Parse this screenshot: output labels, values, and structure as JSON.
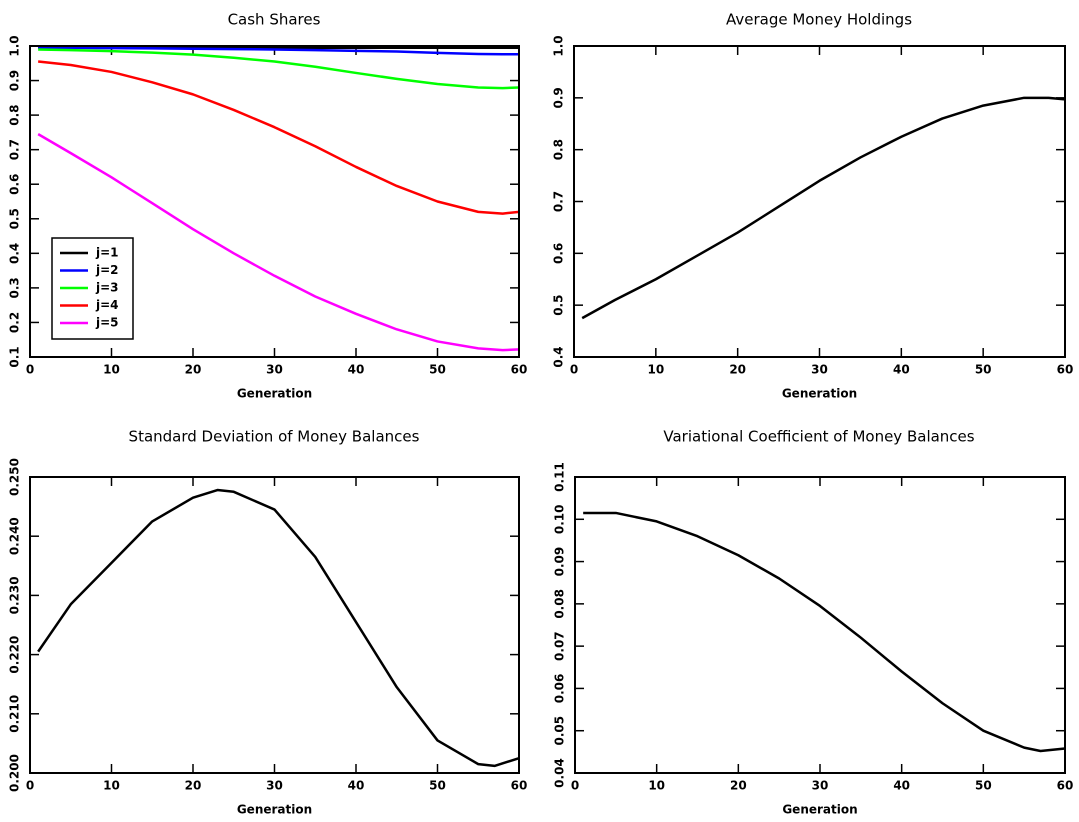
{
  "chart_data": [
    {
      "type": "line",
      "title": "Cash Shares",
      "xlabel": "Generation",
      "xlim": [
        0,
        60
      ],
      "xticks": [
        0,
        10,
        20,
        30,
        40,
        50,
        60
      ],
      "ylim": [
        0.1,
        1.0
      ],
      "yticks": [
        0.1,
        0.2,
        0.3,
        0.4,
        0.5,
        0.6,
        0.7,
        0.8,
        0.9,
        {
          "value": 1.0,
          "label": "1.0"
        }
      ],
      "legend": "lower left",
      "x": [
        1,
        5,
        10,
        15,
        20,
        25,
        30,
        35,
        40,
        45,
        50,
        55,
        58,
        60
      ],
      "series": [
        {
          "name": "j=1",
          "color": "#000000",
          "values": [
            0.995,
            0.995,
            0.995,
            0.995,
            0.995,
            0.995,
            0.995,
            0.995,
            0.995,
            0.995,
            0.995,
            0.995,
            0.995,
            0.995
          ]
        },
        {
          "name": "j=2",
          "color": "#0000ff",
          "values": [
            0.995,
            0.995,
            0.994,
            0.993,
            0.992,
            0.991,
            0.99,
            0.988,
            0.986,
            0.984,
            0.98,
            0.977,
            0.976,
            0.976
          ]
        },
        {
          "name": "j=3",
          "color": "#00ff00",
          "values": [
            0.99,
            0.988,
            0.985,
            0.981,
            0.975,
            0.966,
            0.955,
            0.94,
            0.922,
            0.905,
            0.89,
            0.88,
            0.878,
            0.88
          ]
        },
        {
          "name": "j=4",
          "color": "#ff0000",
          "values": [
            0.955,
            0.945,
            0.925,
            0.895,
            0.86,
            0.815,
            0.765,
            0.71,
            0.65,
            0.595,
            0.55,
            0.52,
            0.515,
            0.52
          ]
        },
        {
          "name": "j=5",
          "color": "#ff00ff",
          "values": [
            0.745,
            0.69,
            0.62,
            0.545,
            0.47,
            0.4,
            0.335,
            0.275,
            0.225,
            0.18,
            0.145,
            0.125,
            0.12,
            0.122
          ]
        }
      ]
    },
    {
      "type": "line",
      "title": "Average Money Holdings",
      "xlabel": "Generation",
      "xlim": [
        0,
        60
      ],
      "xticks": [
        0,
        10,
        20,
        30,
        40,
        50,
        60
      ],
      "ylim": [
        0.4,
        1.0
      ],
      "yticks": [
        0.4,
        0.5,
        0.6,
        0.7,
        0.8,
        0.9,
        {
          "value": 1.0,
          "label": "1.0"
        }
      ],
      "x": [
        1,
        5,
        10,
        15,
        20,
        25,
        30,
        35,
        40,
        45,
        50,
        55,
        58,
        60
      ],
      "series": [
        {
          "color": "#000000",
          "values": [
            0.475,
            0.51,
            0.55,
            0.595,
            0.64,
            0.69,
            0.74,
            0.785,
            0.825,
            0.86,
            0.885,
            0.9,
            0.9,
            0.897
          ]
        }
      ]
    },
    {
      "type": "line",
      "title": "Standard Deviation of Money Balances",
      "xlabel": "Generation",
      "xlim": [
        0,
        60
      ],
      "xticks": [
        0,
        10,
        20,
        30,
        40,
        50,
        60
      ],
      "ylim": [
        0.2,
        0.25
      ],
      "yticks": [
        {
          "value": 0.2,
          "label": "0.200"
        },
        {
          "value": 0.21,
          "label": "0.210"
        },
        {
          "value": 0.22,
          "label": "0.220"
        },
        {
          "value": 0.23,
          "label": "0.230"
        },
        {
          "value": 0.24,
          "label": "0.240"
        },
        {
          "value": 0.25,
          "label": "0.250"
        }
      ],
      "x": [
        1,
        5,
        10,
        15,
        20,
        23,
        25,
        30,
        35,
        40,
        45,
        50,
        55,
        57,
        60
      ],
      "series": [
        {
          "color": "#000000",
          "values": [
            0.2205,
            0.2285,
            0.2355,
            0.2425,
            0.2465,
            0.2478,
            0.2475,
            0.2445,
            0.2365,
            0.2255,
            0.2145,
            0.2055,
            0.2015,
            0.2012,
            0.2025
          ]
        }
      ]
    },
    {
      "type": "line",
      "title": "Variational Coefficient of Money Balances",
      "xlabel": "Generation",
      "xlim": [
        0,
        60
      ],
      "xticks": [
        0,
        10,
        20,
        30,
        40,
        50,
        60
      ],
      "ylim": [
        0.04,
        0.11
      ],
      "yticks": [
        0.04,
        0.05,
        0.06,
        0.07,
        0.08,
        0.09,
        {
          "value": 0.1,
          "label": "0.10"
        },
        0.11
      ],
      "x": [
        1,
        5,
        10,
        15,
        20,
        25,
        30,
        35,
        40,
        45,
        50,
        55,
        57,
        60
      ],
      "series": [
        {
          "color": "#000000",
          "values": [
            0.1015,
            0.1015,
            0.0995,
            0.096,
            0.0915,
            0.086,
            0.0795,
            0.072,
            0.064,
            0.0565,
            0.05,
            0.046,
            0.0452,
            0.0458
          ]
        }
      ]
    }
  ]
}
